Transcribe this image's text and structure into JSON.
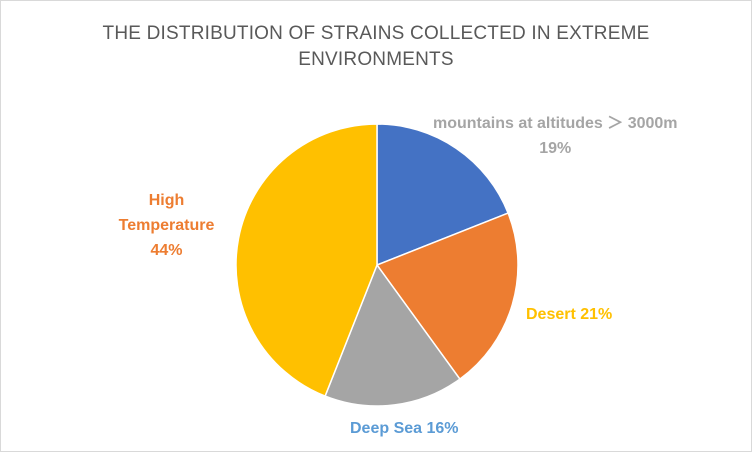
{
  "chart_data": {
    "type": "pie",
    "title_lines": [
      "THE DISTRIBUTION OF STRAINS COLLECTED IN EXTREME",
      "ENVIRONMENTS"
    ],
    "slices": [
      {
        "name": "mountains at altitudes ＞ 3000m",
        "value": 19,
        "label": "19%",
        "color": "#4472C4",
        "label_color": "#A5A5A5"
      },
      {
        "name": "Desert",
        "value": 21,
        "label": "21%",
        "color": "#ED7D31",
        "label_color": "#FFC000"
      },
      {
        "name": "Deep Sea",
        "value": 16,
        "label": "16%",
        "color": "#A5A5A5",
        "label_color": "#5B9BD5"
      },
      {
        "name": "High Temperature",
        "value": 44,
        "label": "44%",
        "color": "#FFC000",
        "label_color": "#ED7D31"
      }
    ],
    "label_text": {
      "mountains": [
        "mountains at altitudes ＞ 3000m",
        "19%"
      ],
      "desert": [
        "Desert 21%"
      ],
      "deepsea": [
        "Deep Sea 16%"
      ],
      "hightemp": [
        "High",
        "Temperature",
        "44%"
      ]
    },
    "legend": "none",
    "start_angle_deg": 0,
    "direction": "clockwise"
  }
}
